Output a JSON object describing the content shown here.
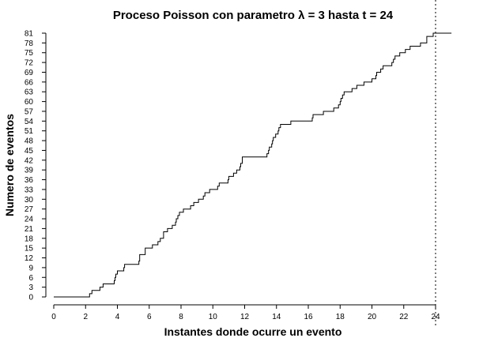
{
  "chart_data": {
    "type": "line",
    "title": "Proceso Poisson con parametro λ = 3 hasta t = 24",
    "xlabel": "Instantes donde ocurre un evento",
    "ylabel": "Numero de eventos",
    "xlim": [
      0,
      24
    ],
    "ylim": [
      0,
      81
    ],
    "x_ticks": [
      0,
      2,
      4,
      6,
      8,
      10,
      12,
      14,
      16,
      18,
      20,
      22,
      24
    ],
    "y_ticks": [
      0,
      3,
      6,
      9,
      12,
      15,
      18,
      21,
      24,
      27,
      30,
      33,
      36,
      39,
      42,
      45,
      48,
      51,
      54,
      57,
      60,
      63,
      66,
      69,
      72,
      75,
      78,
      81
    ],
    "reference_line_x": 24,
    "line_color": "#000000",
    "series": [
      {
        "x": [
          0,
          2.25,
          2.3,
          2.4,
          2.6,
          2.9,
          3.1,
          3.2,
          3.25,
          3.5,
          3.6,
          3.8,
          3.85,
          3.9,
          4.0,
          4.2,
          4.4,
          4.45,
          5.35,
          5.4,
          5.5,
          5.75,
          6.2,
          6.3,
          6.45,
          6.55,
          6.7,
          6.75,
          6.9,
          7.15,
          7.3,
          7.45,
          7.65,
          7.7,
          7.8,
          7.9,
          8.15,
          8.45,
          8.6,
          8.8,
          9.1,
          9.2,
          9.4,
          9.5,
          9.8,
          10.3,
          10.4,
          10.6,
          10.95,
          11.0,
          11.3,
          11.35,
          11.45,
          11.5,
          11.7,
          11.75,
          11.85,
          13.4,
          13.5,
          13.55,
          13.65,
          13.7,
          13.75,
          13.8,
          13.85,
          13.95,
          14.1,
          14.15,
          14.25,
          14.35,
          14.5,
          14.9,
          15.0,
          16.25,
          16.3,
          16.35,
          16.95,
          17.4,
          17.6,
          17.9,
          18.0,
          18.05,
          18.1,
          18.15,
          18.25,
          18.5,
          18.75,
          19.05,
          19.1,
          19.5,
          19.9,
          20.0,
          20.25,
          20.3,
          20.55,
          20.7,
          21.1,
          21.25,
          21.35,
          21.45,
          21.5,
          21.75,
          22.1,
          22.4,
          22.9,
          23.05,
          23.45,
          23.75,
          23.85,
          25.0
        ],
        "y": [
          0,
          1,
          1,
          2,
          2,
          3,
          4,
          4,
          4,
          4,
          4,
          5,
          6,
          7,
          8,
          8,
          9,
          10,
          11,
          13,
          13,
          15,
          16,
          16,
          16,
          17,
          18,
          18,
          20,
          21,
          21,
          22,
          23,
          24,
          25,
          26,
          27,
          27,
          28,
          29,
          30,
          30,
          31,
          32,
          33,
          34,
          35,
          35,
          36,
          37,
          38,
          38,
          38,
          39,
          40,
          41,
          43,
          44,
          45,
          46,
          46,
          47,
          48,
          49,
          49,
          50,
          51,
          52,
          53,
          53,
          53,
          54,
          54,
          55,
          56,
          56,
          57,
          57,
          58,
          59,
          60,
          61,
          61,
          62,
          63,
          63,
          64,
          65,
          65,
          66,
          66,
          67,
          68,
          69,
          70,
          71,
          71,
          72,
          73,
          74,
          74,
          75,
          76,
          77,
          77,
          78,
          80,
          80,
          81,
          81
        ]
      }
    ]
  }
}
